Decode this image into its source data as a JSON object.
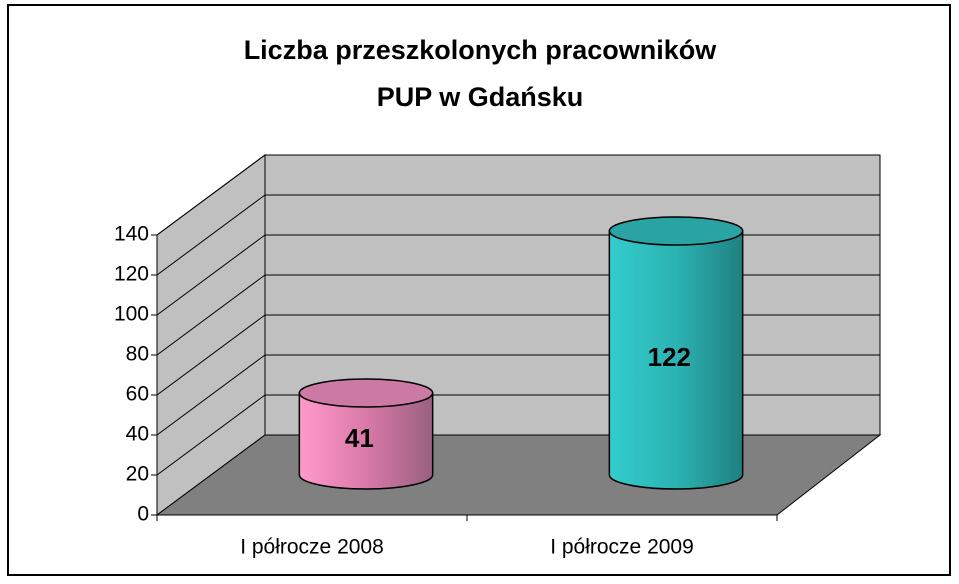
{
  "chart_data": {
    "type": "bar",
    "title": [
      "Liczba przeszkolonych pracowników",
      "PUP w Gdańsku"
    ],
    "categories": [
      "I półrocze 2008",
      "I półrocze 2009"
    ],
    "values": [
      41,
      122
    ],
    "colors": [
      "#ff99cc",
      "#33cccc"
    ],
    "ylim": [
      0,
      140
    ],
    "yticks": [
      0,
      20,
      40,
      60,
      80,
      100,
      120,
      140
    ],
    "grid": true
  }
}
